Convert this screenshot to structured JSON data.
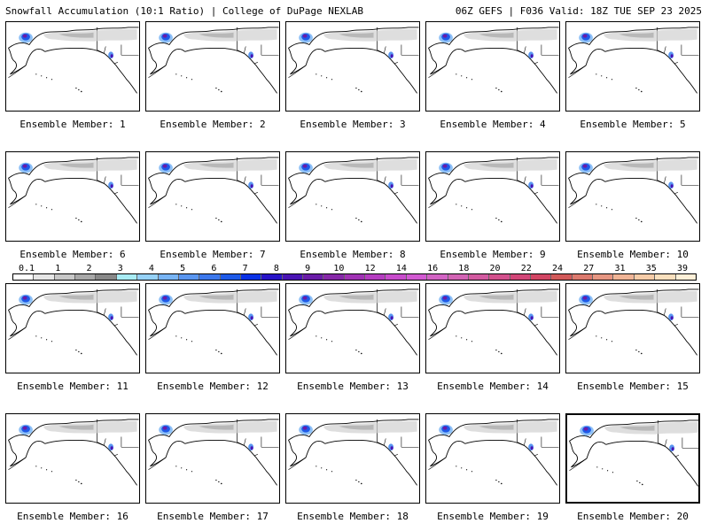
{
  "header": {
    "title_left": "Snowfall Accumulation (10:1 Ratio) | College of DuPage NEXLAB",
    "title_right": "06Z GEFS | F036 Valid: 18Z TUE SEP 23 2025"
  },
  "members": [
    {
      "label": "Ensemble Member: 1"
    },
    {
      "label": "Ensemble Member: 2"
    },
    {
      "label": "Ensemble Member: 3"
    },
    {
      "label": "Ensemble Member: 4"
    },
    {
      "label": "Ensemble Member: 5"
    },
    {
      "label": "Ensemble Member: 6"
    },
    {
      "label": "Ensemble Member: 7"
    },
    {
      "label": "Ensemble Member: 8"
    },
    {
      "label": "Ensemble Member: 9"
    },
    {
      "label": "Ensemble Member: 10"
    },
    {
      "label": "Ensemble Member: 11"
    },
    {
      "label": "Ensemble Member: 12"
    },
    {
      "label": "Ensemble Member: 13"
    },
    {
      "label": "Ensemble Member: 14"
    },
    {
      "label": "Ensemble Member: 15"
    },
    {
      "label": "Ensemble Member: 16"
    },
    {
      "label": "Ensemble Member: 17"
    },
    {
      "label": "Ensemble Member: 18"
    },
    {
      "label": "Ensemble Member: 19"
    },
    {
      "label": "Ensemble Member: 20"
    }
  ],
  "colorbar": {
    "labels": [
      "0.1",
      "1",
      "2",
      "3",
      "4",
      "5",
      "6",
      "7",
      "8",
      "9",
      "10",
      "12",
      "14",
      "16",
      "18",
      "20",
      "22",
      "24",
      "27",
      "31",
      "35",
      "39"
    ],
    "colors": [
      "#ffffff",
      "#e6e6e6",
      "#c8c8c8",
      "#a8a8a8",
      "#888888",
      "#a8ecf4",
      "#96d2f8",
      "#78b4f4",
      "#5a96f0",
      "#3c78ec",
      "#1e5ae8",
      "#0a32e6",
      "#2814c8",
      "#4a14b4",
      "#6a1ca8",
      "#8628a8",
      "#a032b4",
      "#b43cc0",
      "#c84ccc",
      "#d25ad2",
      "#d264c4",
      "#d264b4",
      "#d25aa0",
      "#d2508c",
      "#d24678",
      "#d24664",
      "#d25a5a",
      "#dc7a6e",
      "#e69682",
      "#f0b496",
      "#f6cca8",
      "#fae0be",
      "#fff0d8"
    ]
  }
}
